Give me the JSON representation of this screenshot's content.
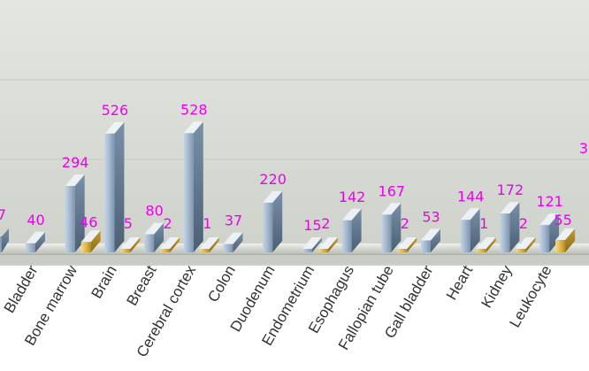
{
  "chart_data": {
    "type": "bar",
    "title": "",
    "xlabel": "",
    "ylabel": "",
    "grid": true,
    "ylim": [
      0,
      800
    ],
    "categories": [
      "Bladder",
      "Bone marrow",
      "Brain",
      "Breast",
      "Cerebral cortex",
      "Colon",
      "Duodenum",
      "Endometrium",
      "Esophagus",
      "Fallopian tube",
      "Gall bladder",
      "Heart",
      "Kidney",
      "Leukocyte"
    ],
    "series": [
      {
        "values": [
          40,
          294,
          526,
          80,
          528,
          37,
          220,
          15,
          142,
          167,
          53,
          144,
          172,
          121
        ]
      },
      {
        "values": [
          null,
          46,
          5,
          2,
          1,
          null,
          null,
          2,
          null,
          2,
          null,
          1,
          2,
          55
        ]
      }
    ],
    "partial_values": {
      "left_edge_label": "7",
      "right_edge_label": "3"
    },
    "colors": {
      "series_a": "#8aa3bc",
      "series_b": "#c9a23a",
      "value_label": "#ee00ee",
      "background_top": "#e3e6df",
      "background_bottom": "#cfd3cb",
      "grid": "#c4c8c0",
      "floor": "#bfc3b9"
    }
  }
}
